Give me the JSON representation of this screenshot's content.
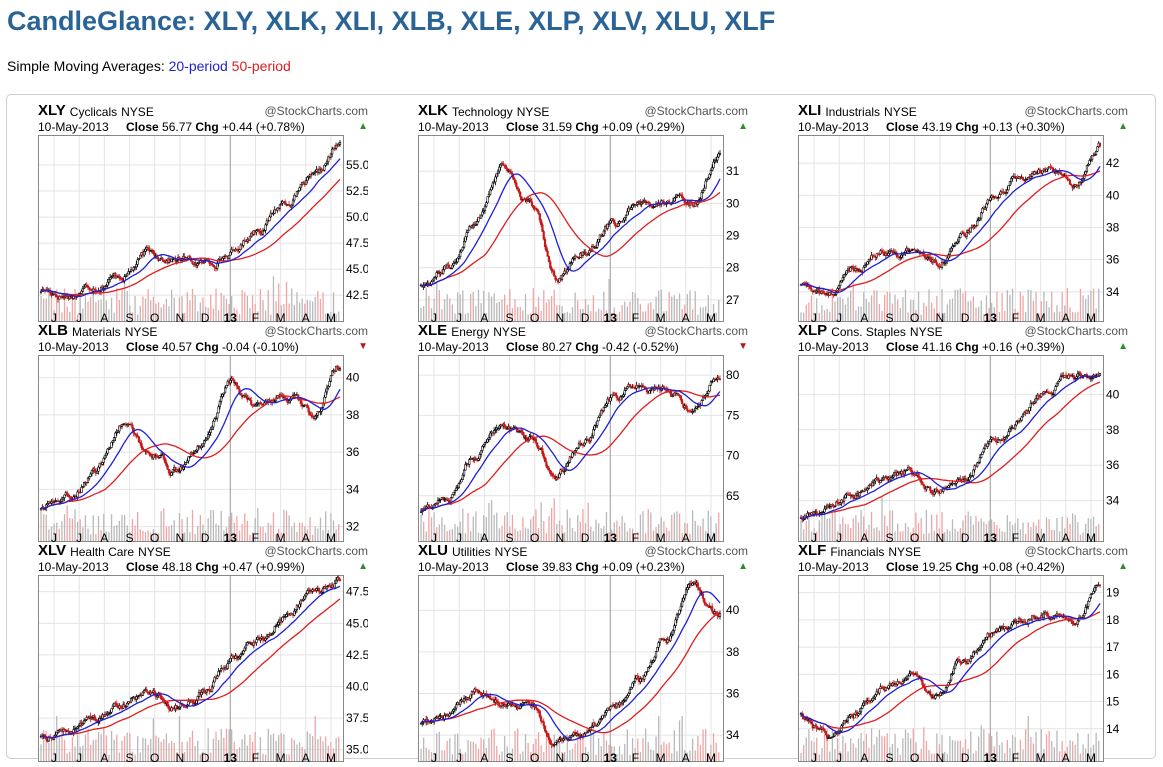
{
  "page": {
    "title": "CandleGlance: XLY, XLK, XLI, XLB, XLE, XLP, XLV, XLU, XLF",
    "legend_prefix": "Simple Moving Averages:",
    "legend_20": "20-period",
    "legend_50": "50-period"
  },
  "colors": {
    "title": "#2a6496",
    "sma20": "#1f1fd6",
    "sma50": "#e01d1d",
    "up_arrow": "#2e8b2e",
    "down_arrow": "#b01c1c"
  },
  "chart_data": [
    {
      "type": "candlestick",
      "symbol": "XLY",
      "name": "Cyclicals",
      "exchange": "NYSE",
      "watermark": "@StockCharts.com",
      "date": "10-May-2013",
      "close_label": "Close",
      "close": "56.77",
      "chg_label": "Chg",
      "chg": "+0.44 (+0.78%)",
      "direction": "up",
      "months": [
        "J",
        "J",
        "A",
        "S",
        "O",
        "N",
        "D",
        "13",
        "F",
        "M",
        "A",
        "M"
      ],
      "yticks": [
        "42.5",
        "45.0",
        "47.5",
        "50.0",
        "52.5",
        "55.0"
      ],
      "ylim": [
        40.5,
        57.5
      ],
      "anchors": [
        43,
        42.5,
        43.5,
        44.5,
        46.5,
        46,
        45.5,
        46.5,
        49,
        51.5,
        53.5,
        56.8
      ]
    },
    {
      "type": "candlestick",
      "symbol": "XLK",
      "name": "Technology",
      "exchange": "NYSE",
      "watermark": "@StockCharts.com",
      "date": "10-May-2013",
      "close_label": "Close",
      "close": "31.59",
      "chg_label": "Chg",
      "chg": "+0.09 (+0.29%)",
      "direction": "up",
      "months": [
        "J",
        "J",
        "A",
        "S",
        "O",
        "N",
        "D",
        "13",
        "F",
        "M",
        "A",
        "M"
      ],
      "yticks": [
        "27",
        "28",
        "29",
        "30",
        "31"
      ],
      "ylim": [
        26.5,
        32
      ],
      "anchors": [
        27.5,
        28,
        29.5,
        31.2,
        30,
        27.8,
        28.5,
        29.3,
        29.8,
        30.2,
        30,
        31.6
      ]
    },
    {
      "type": "candlestick",
      "symbol": "XLI",
      "name": "Industrials",
      "exchange": "NYSE",
      "watermark": "@StockCharts.com",
      "date": "10-May-2013",
      "close_label": "Close",
      "close": "43.19",
      "chg_label": "Chg",
      "chg": "+0.13 (+0.30%)",
      "direction": "up",
      "months": [
        "J",
        "J",
        "A",
        "S",
        "O",
        "N",
        "D",
        "13",
        "F",
        "M",
        "A",
        "M"
      ],
      "yticks": [
        "34",
        "36",
        "38",
        "40",
        "42"
      ],
      "ylim": [
        32.5,
        43.5
      ],
      "anchors": [
        34.5,
        33.8,
        35.5,
        36.5,
        36.5,
        36,
        37.5,
        39.5,
        41,
        41.5,
        40.5,
        43.2
      ]
    },
    {
      "type": "candlestick",
      "symbol": "XLB",
      "name": "Materials",
      "exchange": "NYSE",
      "watermark": "@StockCharts.com",
      "date": "10-May-2013",
      "close_label": "Close",
      "close": "40.57",
      "chg_label": "Chg",
      "chg": "-0.04 (-0.10%)",
      "direction": "down",
      "months": [
        "J",
        "J",
        "A",
        "S",
        "O",
        "N",
        "D",
        "13",
        "F",
        "M",
        "A",
        "M"
      ],
      "yticks": [
        "32",
        "34",
        "36",
        "38",
        "40"
      ],
      "ylim": [
        31.5,
        41
      ],
      "anchors": [
        33,
        33.5,
        35,
        37.5,
        36,
        35,
        36.5,
        39.5,
        38.5,
        39,
        38,
        40.6
      ]
    },
    {
      "type": "candlestick",
      "symbol": "XLE",
      "name": "Energy",
      "exchange": "NYSE",
      "watermark": "@StockCharts.com",
      "date": "10-May-2013",
      "close_label": "Close",
      "close": "80.27",
      "chg_label": "Chg",
      "chg": "-0.42 (-0.52%)",
      "direction": "down",
      "months": [
        "J",
        "J",
        "A",
        "S",
        "O",
        "N",
        "D",
        "13",
        "F",
        "M",
        "A",
        "M"
      ],
      "yticks": [
        "65",
        "70",
        "75",
        "80"
      ],
      "ylim": [
        60,
        82
      ],
      "anchors": [
        63,
        65,
        70,
        74,
        72,
        68,
        72,
        77,
        79,
        78.5,
        76,
        80.3
      ]
    },
    {
      "type": "candlestick",
      "symbol": "XLP",
      "name": "Cons. Staples",
      "exchange": "NYSE",
      "watermark": "@StockCharts.com",
      "date": "10-May-2013",
      "close_label": "Close",
      "close": "41.16",
      "chg_label": "Chg",
      "chg": "+0.16 (+0.39%)",
      "direction": "up",
      "months": [
        "J",
        "J",
        "A",
        "S",
        "O",
        "N",
        "D",
        "13",
        "F",
        "M",
        "A",
        "M"
      ],
      "yticks": [
        "34",
        "36",
        "38",
        "40"
      ],
      "ylim": [
        32,
        42
      ],
      "anchors": [
        33,
        33.5,
        34.5,
        35,
        35.5,
        34.5,
        35.5,
        37,
        38.5,
        40,
        41,
        41.2
      ]
    },
    {
      "type": "candlestick",
      "symbol": "XLV",
      "name": "Health Care",
      "exchange": "NYSE",
      "watermark": "@StockCharts.com",
      "date": "10-May-2013",
      "close_label": "Close",
      "close": "48.18",
      "chg_label": "Chg",
      "chg": "+0.47 (+0.99%)",
      "direction": "up",
      "months": [
        "J",
        "J",
        "A",
        "S",
        "O",
        "N",
        "D",
        "13",
        "F",
        "M",
        "A",
        "M"
      ],
      "yticks": [
        "35.0",
        "37.5",
        "40.0",
        "42.5",
        "45.0",
        "47.5"
      ],
      "ylim": [
        34.5,
        48.5
      ],
      "anchors": [
        36,
        36.5,
        37.5,
        38.5,
        39.5,
        38.5,
        39.5,
        42,
        43.5,
        45.5,
        47.5,
        48.2
      ]
    },
    {
      "type": "candlestick",
      "symbol": "XLU",
      "name": "Utilities",
      "exchange": "NYSE",
      "watermark": "@StockCharts.com",
      "date": "10-May-2013",
      "close_label": "Close",
      "close": "39.83",
      "chg_label": "Chg",
      "chg": "+0.09 (+0.23%)",
      "direction": "up",
      "months": [
        "J",
        "J",
        "A",
        "S",
        "O",
        "N",
        "D",
        "13",
        "F",
        "M",
        "A",
        "M"
      ],
      "yticks": [
        "34",
        "36",
        "38",
        "40"
      ],
      "ylim": [
        33,
        41.5
      ],
      "anchors": [
        34.5,
        35,
        36,
        35.5,
        35.5,
        33.5,
        34,
        35,
        36.5,
        38.5,
        41,
        39.8
      ]
    },
    {
      "type": "candlestick",
      "symbol": "XLF",
      "name": "Financials",
      "exchange": "NYSE",
      "watermark": "@StockCharts.com",
      "date": "10-May-2013",
      "close_label": "Close",
      "close": "19.25",
      "chg_label": "Chg",
      "chg": "+0.08 (+0.42%)",
      "direction": "up",
      "months": [
        "J",
        "J",
        "A",
        "S",
        "O",
        "N",
        "D",
        "13",
        "F",
        "M",
        "A",
        "M"
      ],
      "yticks": [
        "14",
        "15",
        "16",
        "17",
        "18",
        "19"
      ],
      "ylim": [
        13,
        19.5
      ],
      "anchors": [
        14.5,
        13.8,
        14.5,
        15.5,
        16,
        15.2,
        16.5,
        17.5,
        18,
        18.3,
        18,
        19.2
      ]
    }
  ]
}
